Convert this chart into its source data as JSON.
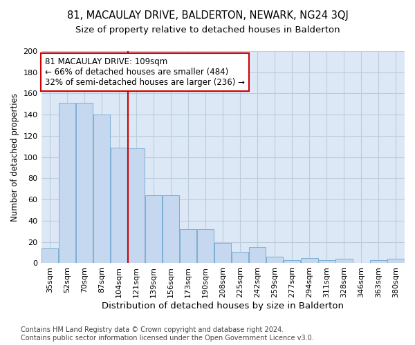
{
  "title": "81, MACAULAY DRIVE, BALDERTON, NEWARK, NG24 3QJ",
  "subtitle": "Size of property relative to detached houses in Balderton",
  "xlabel": "Distribution of detached houses by size in Balderton",
  "ylabel": "Number of detached properties",
  "categories": [
    "35sqm",
    "52sqm",
    "70sqm",
    "87sqm",
    "104sqm",
    "121sqm",
    "139sqm",
    "156sqm",
    "173sqm",
    "190sqm",
    "208sqm",
    "225sqm",
    "242sqm",
    "259sqm",
    "277sqm",
    "294sqm",
    "311sqm",
    "328sqm",
    "346sqm",
    "363sqm",
    "380sqm"
  ],
  "bar_values": [
    14,
    151,
    151,
    140,
    109,
    108,
    64,
    64,
    32,
    32,
    19,
    11,
    15,
    6,
    3,
    5,
    3,
    4,
    0,
    3,
    4
  ],
  "bar_color": "#c5d8f0",
  "bar_edge_color": "#7bafd4",
  "vline_color": "#cc0000",
  "annotation_text": "81 MACAULAY DRIVE: 109sqm\n← 66% of detached houses are smaller (484)\n32% of semi-detached houses are larger (236) →",
  "annotation_box_color": "white",
  "annotation_box_edge_color": "#cc0000",
  "ylim": [
    0,
    200
  ],
  "yticks": [
    0,
    20,
    40,
    60,
    80,
    100,
    120,
    140,
    160,
    180,
    200
  ],
  "grid_color": "#bbccdd",
  "bg_color": "#dce8f5",
  "footer": "Contains HM Land Registry data © Crown copyright and database right 2024.\nContains public sector information licensed under the Open Government Licence v3.0.",
  "title_fontsize": 10.5,
  "subtitle_fontsize": 9.5,
  "xlabel_fontsize": 9.5,
  "ylabel_fontsize": 8.5,
  "annotation_fontsize": 8.5,
  "footer_fontsize": 7.0,
  "tick_fontsize": 8.0
}
